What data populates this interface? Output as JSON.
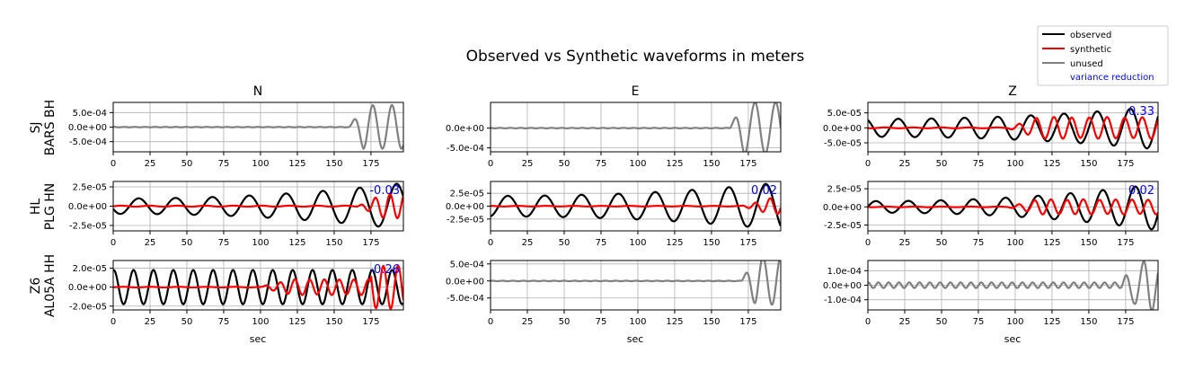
{
  "chart_data": {
    "type": "line",
    "title": "Observed vs Synthetic waveforms in meters",
    "legend": {
      "placement": "top-right",
      "entries": [
        {
          "label": "observed",
          "color": "#000000"
        },
        {
          "label": "synthetic",
          "color": "#ff0000"
        },
        {
          "label": "unused",
          "color": "#808080"
        },
        {
          "label": "variance reduction",
          "color": "#0000ff"
        }
      ]
    },
    "xlabel": "sec",
    "xlim": [
      0,
      197
    ],
    "xticks": [
      0,
      25,
      50,
      75,
      100,
      125,
      150,
      175
    ],
    "grid": true,
    "columns": [
      "N",
      "E",
      "Z"
    ],
    "rows": [
      {
        "network": "SJ",
        "station": "BARS BH"
      },
      {
        "network": "HL",
        "station": "PLG HN"
      },
      {
        "network": "Z6",
        "station": "AL05A HH"
      }
    ],
    "panels": [
      {
        "row": 0,
        "col": 0,
        "used": false,
        "ylim": [
          -0.00085,
          0.00085
        ],
        "yticks": [
          {
            "v": 0.0005,
            "label": "5.0e-04"
          },
          {
            "v": 0,
            "label": "0.0e+00"
          },
          {
            "v": -0.0005,
            "label": "-5.0e-04"
          }
        ],
        "vr": "",
        "obs": {
          "amp": 0.00075,
          "t0": 160,
          "period": 13,
          "decay": 0,
          "seed": 1,
          "noise": 0.01
        },
        "syn": null
      },
      {
        "row": 0,
        "col": 1,
        "used": false,
        "ylim": [
          -0.0006,
          0.00065
        ],
        "yticks": [
          {
            "v": 0,
            "label": "0.0e+00"
          },
          {
            "v": -0.0005,
            "label": "-5.0e-04"
          }
        ],
        "vr": "",
        "obs": {
          "amp": 0.00065,
          "t0": 162,
          "period": 14,
          "decay": 0,
          "seed": 2,
          "noise": 0.01
        },
        "syn": null
      },
      {
        "row": 0,
        "col": 2,
        "used": true,
        "ylim": [
          -8e-05,
          8.5e-05
        ],
        "yticks": [
          {
            "v": 5e-05,
            "label": "5.0e-05"
          },
          {
            "v": 0,
            "label": "0.0e+00"
          },
          {
            "v": -5e-05,
            "label": "-5.0e-05"
          }
        ],
        "vr": "0.33",
        "obs": {
          "amp": 3e-05,
          "t0": 0,
          "period": 22.5,
          "grow": 2.4,
          "seed": 3
        },
        "syn": {
          "amp": 3.5e-05,
          "t0": 95,
          "period": 12,
          "seed": 4
        }
      },
      {
        "row": 1,
        "col": 0,
        "used": true,
        "ylim": [
          -3.2e-05,
          3.2e-05
        ],
        "yticks": [
          {
            "v": 2.5e-05,
            "label": "2.5e-05"
          },
          {
            "v": 0,
            "label": "0.0e+00"
          },
          {
            "v": -2.5e-05,
            "label": "-2.5e-05"
          }
        ],
        "vr": "-0.03",
        "obs": {
          "amp": 1e-05,
          "t0": 0,
          "period": 25,
          "grow": 3.0,
          "seed": 5
        },
        "syn": {
          "amp": 1.6e-05,
          "t0": 165,
          "period": 10,
          "seed": 6
        }
      },
      {
        "row": 1,
        "col": 1,
        "used": true,
        "ylim": [
          -4.8e-05,
          4.8e-05
        ],
        "yticks": [
          {
            "v": 2.5e-05,
            "label": "2.5e-05"
          },
          {
            "v": 0,
            "label": "0.0e+00"
          },
          {
            "v": -2.5e-05,
            "label": "-2.5e-05"
          }
        ],
        "vr": "0.02",
        "obs": {
          "amp": 2e-05,
          "t0": 0,
          "period": 25,
          "grow": 2.3,
          "seed": 7
        },
        "syn": {
          "amp": 1.5e-05,
          "t0": 170,
          "period": 10,
          "seed": 8
        }
      },
      {
        "row": 1,
        "col": 2,
        "used": true,
        "ylim": [
          -3.3e-05,
          3.5e-05
        ],
        "yticks": [
          {
            "v": 2.5e-05,
            "label": "2.5e-05"
          },
          {
            "v": 0,
            "label": "0.0e+00"
          },
          {
            "v": -2.5e-05,
            "label": "-2.5e-05"
          }
        ],
        "vr": "0.02",
        "obs": {
          "amp": 8e-06,
          "t0": 0,
          "period": 22,
          "grow": 4.0,
          "seed": 9
        },
        "syn": {
          "amp": 1e-05,
          "t0": 95,
          "period": 11,
          "seed": 10
        }
      },
      {
        "row": 2,
        "col": 0,
        "used": true,
        "ylim": [
          -2.4e-05,
          2.8e-05
        ],
        "yticks": [
          {
            "v": 2e-05,
            "label": "2.0e-05"
          },
          {
            "v": 0,
            "label": "0.0e+00"
          },
          {
            "v": -2e-05,
            "label": "-2.0e-05"
          }
        ],
        "vr": "-0.26",
        "obs": {
          "amp": 1.8e-05,
          "t0": 0,
          "period": 13.5,
          "grow": 1.0,
          "seed": 11
        },
        "syn": {
          "amp": 8e-06,
          "t0": 100,
          "period": 10,
          "seed": 12,
          "burst": 175
        }
      },
      {
        "row": 2,
        "col": 1,
        "used": false,
        "ylim": [
          -0.00085,
          0.0006
        ],
        "yticks": [
          {
            "v": 0.0005,
            "label": "5.0e-04"
          },
          {
            "v": 0,
            "label": "0.0e+00"
          },
          {
            "v": -0.0005,
            "label": "-5.0e-04"
          }
        ],
        "vr": "",
        "obs": {
          "amp": 0.0007,
          "t0": 170,
          "period": 12,
          "decay": 0,
          "seed": 13,
          "noise": 0.01
        },
        "syn": null
      },
      {
        "row": 2,
        "col": 2,
        "used": false,
        "ylim": [
          -0.00017,
          0.00017
        ],
        "yticks": [
          {
            "v": 0.0001,
            "label": "1.0e-04"
          },
          {
            "v": 0,
            "label": "0.0e+00"
          },
          {
            "v": -0.0001,
            "label": "-1.0e-04"
          }
        ],
        "vr": "",
        "obs": {
          "amp": 0.00016,
          "t0": 172,
          "period": 12,
          "decay": 0,
          "seed": 14,
          "noise": 0.12
        },
        "syn": null
      }
    ]
  }
}
